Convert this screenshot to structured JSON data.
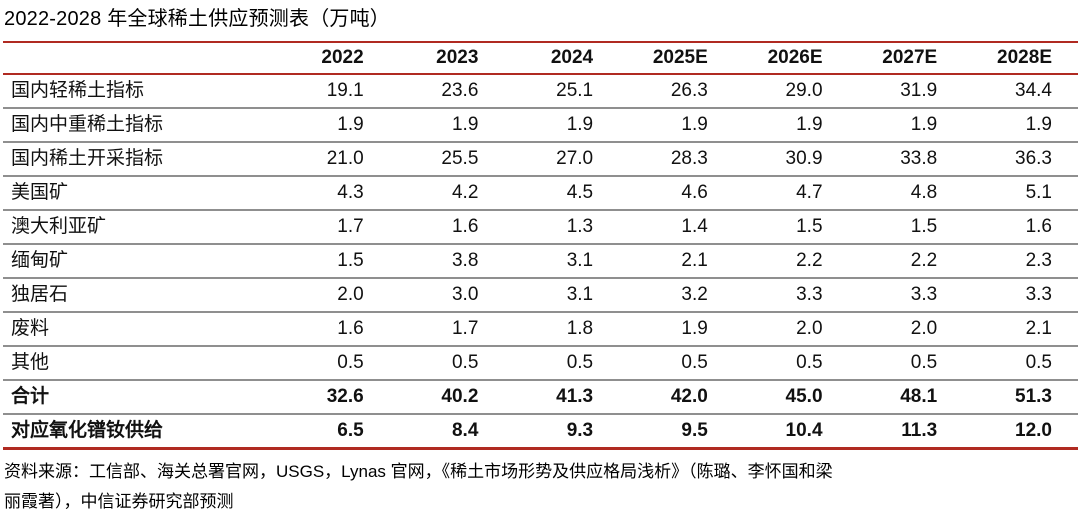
{
  "title": "2022-2028 年全球稀土供应预测表（万吨）",
  "table": {
    "columns": [
      "",
      "2022",
      "2023",
      "2024",
      "2025E",
      "2026E",
      "2027E",
      "2028E"
    ],
    "rows": [
      {
        "label": "国内轻稀土指标",
        "bold": false,
        "values": [
          "19.1",
          "23.6",
          "25.1",
          "26.3",
          "29.0",
          "31.9",
          "34.4"
        ]
      },
      {
        "label": "国内中重稀土指标",
        "bold": false,
        "values": [
          "1.9",
          "1.9",
          "1.9",
          "1.9",
          "1.9",
          "1.9",
          "1.9"
        ]
      },
      {
        "label": "国内稀土开采指标",
        "bold": false,
        "values": [
          "21.0",
          "25.5",
          "27.0",
          "28.3",
          "30.9",
          "33.8",
          "36.3"
        ]
      },
      {
        "label": "美国矿",
        "bold": false,
        "values": [
          "4.3",
          "4.2",
          "4.5",
          "4.6",
          "4.7",
          "4.8",
          "5.1"
        ]
      },
      {
        "label": "澳大利亚矿",
        "bold": false,
        "values": [
          "1.7",
          "1.6",
          "1.3",
          "1.4",
          "1.5",
          "1.5",
          "1.6"
        ]
      },
      {
        "label": "缅甸矿",
        "bold": false,
        "values": [
          "1.5",
          "3.8",
          "3.1",
          "2.1",
          "2.2",
          "2.2",
          "2.3"
        ]
      },
      {
        "label": "独居石",
        "bold": false,
        "values": [
          "2.0",
          "3.0",
          "3.1",
          "3.2",
          "3.3",
          "3.3",
          "3.3"
        ]
      },
      {
        "label": "废料",
        "bold": false,
        "values": [
          "1.6",
          "1.7",
          "1.8",
          "1.9",
          "2.0",
          "2.0",
          "2.1"
        ]
      },
      {
        "label": "其他",
        "bold": false,
        "values": [
          "0.5",
          "0.5",
          "0.5",
          "0.5",
          "0.5",
          "0.5",
          "0.5"
        ]
      },
      {
        "label": "合计",
        "bold": true,
        "values": [
          "32.6",
          "40.2",
          "41.3",
          "42.0",
          "45.0",
          "48.1",
          "51.3"
        ]
      },
      {
        "label": "对应氧化镨钕供给",
        "bold": true,
        "values": [
          "6.5",
          "8.4",
          "9.3",
          "9.5",
          "10.4",
          "11.3",
          "12.0"
        ]
      }
    ]
  },
  "footer": {
    "line1": "资料来源：工信部、海关总署官网，USGS，Lynas 官网，《稀土市场形势及供应格局浅析》（陈璐、李怀国和梁",
    "line2": "丽霞著），中信证券研究部预测"
  },
  "colors": {
    "rule_red": "#b02a21",
    "row_divider": "#8f8f8f",
    "text": "#111111"
  }
}
